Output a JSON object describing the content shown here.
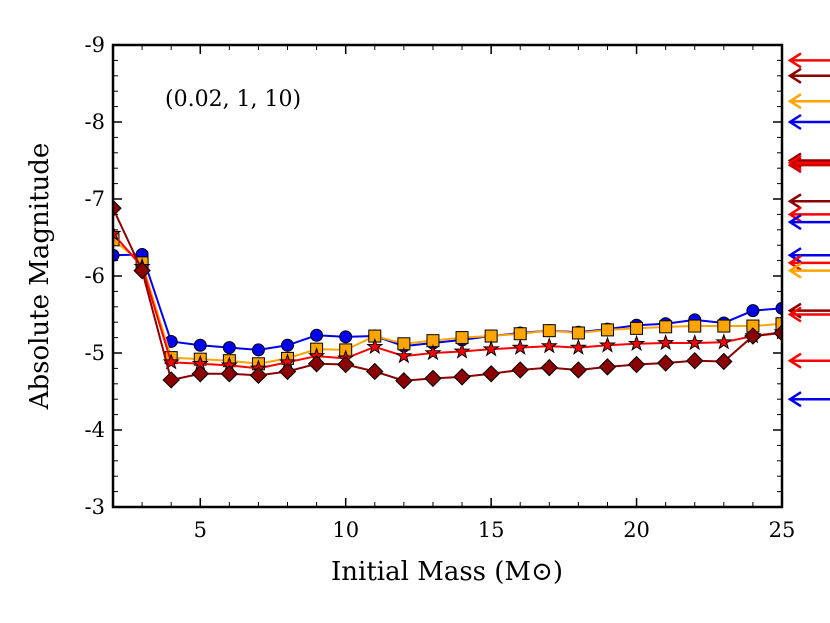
{
  "chart_data": {
    "type": "line",
    "title": "",
    "annotation": "(0.02, 1, 10)",
    "xlabel": "Initial Mass (M⊙)",
    "ylabel": "Absolute Magnitude",
    "xlim": [
      2,
      25
    ],
    "ylim": [
      -3,
      -9
    ],
    "y_inverted": true,
    "xticks": [
      5,
      10,
      15,
      20,
      25
    ],
    "yticks": [
      -9,
      -8,
      -7,
      -6,
      -5,
      -4,
      -3
    ],
    "grid": false,
    "series": [
      {
        "marker": "circle",
        "color": "#0000ee",
        "x": [
          2,
          3,
          4,
          5,
          6,
          7,
          8,
          9,
          10,
          11,
          12,
          13,
          14,
          15,
          16,
          17,
          18,
          19,
          20,
          21,
          22,
          23,
          24,
          25
        ],
        "y": [
          -6.27,
          -6.28,
          -5.15,
          -5.1,
          -5.07,
          -5.04,
          -5.1,
          -5.23,
          -5.21,
          -5.22,
          -5.09,
          -5.13,
          -5.17,
          -5.22,
          -5.26,
          -5.29,
          -5.27,
          -5.31,
          -5.36,
          -5.38,
          -5.43,
          -5.39,
          -5.55,
          -5.58
        ]
      },
      {
        "marker": "square",
        "color": "#ffa500",
        "x": [
          2,
          3,
          4,
          5,
          6,
          7,
          8,
          9,
          10,
          11,
          12,
          13,
          14,
          15,
          16,
          17,
          18,
          19,
          20,
          21,
          22,
          23,
          24,
          25
        ],
        "y": [
          -6.47,
          -6.17,
          -4.94,
          -4.92,
          -4.9,
          -4.86,
          -4.93,
          -5.05,
          -5.04,
          -5.22,
          -5.12,
          -5.16,
          -5.2,
          -5.22,
          -5.25,
          -5.29,
          -5.26,
          -5.3,
          -5.32,
          -5.34,
          -5.35,
          -5.35,
          -5.35,
          -5.38
        ]
      },
      {
        "marker": "star",
        "color": "#ff0000",
        "x": [
          2,
          3,
          4,
          5,
          6,
          7,
          8,
          9,
          10,
          11,
          12,
          13,
          14,
          15,
          16,
          17,
          18,
          19,
          20,
          21,
          22,
          23,
          24,
          25
        ],
        "y": [
          -6.55,
          -6.12,
          -4.88,
          -4.86,
          -4.84,
          -4.8,
          -4.88,
          -4.96,
          -4.93,
          -5.08,
          -4.96,
          -5.0,
          -5.02,
          -5.05,
          -5.07,
          -5.09,
          -5.07,
          -5.1,
          -5.12,
          -5.13,
          -5.13,
          -5.14,
          -5.22,
          -5.27
        ]
      },
      {
        "marker": "diamond",
        "color": "#8b0000",
        "x": [
          2,
          3,
          4,
          5,
          6,
          7,
          8,
          9,
          10,
          11,
          12,
          13,
          14,
          15,
          16,
          17,
          18,
          19,
          20,
          21,
          22,
          23,
          24,
          25
        ],
        "y": [
          -6.88,
          -6.07,
          -4.65,
          -4.73,
          -4.73,
          -4.71,
          -4.76,
          -4.86,
          -4.85,
          -4.76,
          -4.64,
          -4.67,
          -4.69,
          -4.73,
          -4.78,
          -4.81,
          -4.78,
          -4.82,
          -4.85,
          -4.87,
          -4.9,
          -4.89,
          -5.22,
          -5.26
        ]
      }
    ],
    "arrows": [
      {
        "y": -8.8,
        "color": "#ff0000"
      },
      {
        "y": -8.6,
        "color": "#8b0000"
      },
      {
        "y": -8.27,
        "color": "#ffa500"
      },
      {
        "y": -8.0,
        "color": "#0000ee"
      },
      {
        "y": -7.5,
        "color": "#8b0000"
      },
      {
        "y": -7.47,
        "color": "#ff0000"
      },
      {
        "y": -7.44,
        "color": "#cc0000"
      },
      {
        "y": -6.97,
        "color": "#8b0000"
      },
      {
        "y": -6.8,
        "color": "#ff0000"
      },
      {
        "y": -6.7,
        "color": "#0000ee"
      },
      {
        "y": -6.27,
        "color": "#0000ee"
      },
      {
        "y": -6.17,
        "color": "#ff0000"
      },
      {
        "y": -6.07,
        "color": "#ffa500"
      },
      {
        "y": -5.55,
        "color": "#8b0000"
      },
      {
        "y": -5.5,
        "color": "#ff0000"
      },
      {
        "y": -4.9,
        "color": "#ff0000"
      },
      {
        "y": -4.4,
        "color": "#0000ee"
      }
    ]
  }
}
